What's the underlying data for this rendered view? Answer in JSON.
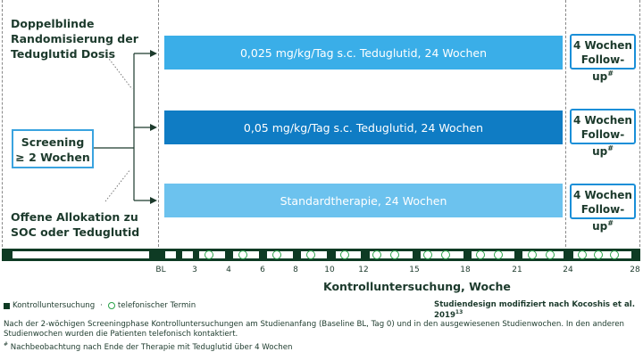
{
  "left": {
    "top_label": "Doppelblinde\nRandomisierung der\nTeduglutid Dosis",
    "screening_label": "Screening\n≥ 2 Wochen",
    "bottom_label": "Offene Allokation zu\nSOC oder Teduglutid"
  },
  "arms": [
    {
      "label": "0,025 mg/kg/Tag s.c. Teduglutid, 24 Wochen",
      "color": "#3aaee8"
    },
    {
      "label": "0,05 mg/kg/Tag s.c. Teduglutid, 24 Wochen",
      "color": "#0f7cc4"
    },
    {
      "label": "Standardtherapie, 24 Wochen",
      "color": "#6cc2ee"
    }
  ],
  "followup": {
    "line1": "4 Wochen",
    "line2": "Follow-up",
    "mark": "#"
  },
  "timeline": {
    "ticks": [
      "BL",
      "3",
      "4",
      "6",
      "8",
      "10",
      "12",
      "15",
      "18",
      "21",
      "24",
      "28"
    ],
    "axis_title": "Kontrolluntersuchung, Woche",
    "colors": {
      "dark": "#0e3b24",
      "circle": "#2aa34a"
    }
  },
  "legend": {
    "kontroll": "Kontrolluntersuchung",
    "separator": "·",
    "telefon": "telefonischer Termin",
    "source": "Studiendesign modifiziert nach Kocoshis et al. 2019",
    "source_ref": "13"
  },
  "footnotes": {
    "line1": "Nach der 2-wöchigen Screeningphase Kontrolluntersuchungen am Studienanfang (Baseline BL, Tag 0) und in den ausgewiesenen Studienwochen. In den anderen",
    "line2": "Studienwochen wurden die Patienten telefonisch kontaktiert.",
    "line3_mark": "#",
    "line3": " Nachbeobachtung nach Ende der Therapie mit Teduglutid über 4 Wochen"
  }
}
